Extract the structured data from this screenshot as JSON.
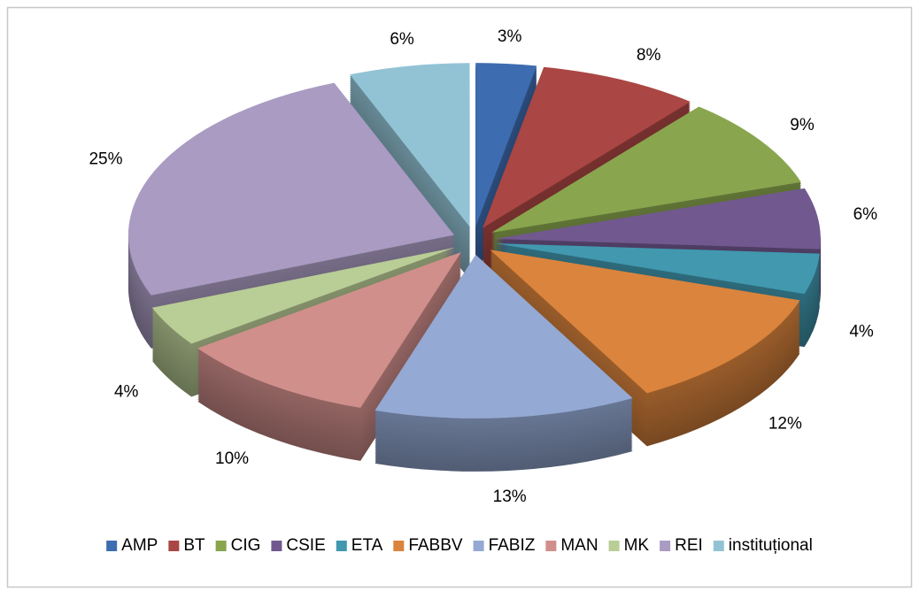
{
  "chart_data": {
    "type": "pie",
    "categories": [
      "AMP",
      "BT",
      "CIG",
      "CSIE",
      "ETA",
      "FABBV",
      "FABIZ",
      "MAN",
      "MK",
      "REI",
      "instituțional"
    ],
    "values": [
      3,
      8,
      9,
      6,
      4,
      12,
      13,
      10,
      4,
      25,
      6
    ],
    "value_labels": [
      "3%",
      "8%",
      "9%",
      "6%",
      "4%",
      "12%",
      "13%",
      "10%",
      "4%",
      "25%",
      "6%"
    ],
    "colors": [
      "#3e6cb0",
      "#aa4643",
      "#89a54e",
      "#71588f",
      "#4198af",
      "#db843d",
      "#94a9d3",
      "#d18f8c",
      "#b9cd96",
      "#a99bc1",
      "#92c3d5"
    ],
    "legend": "bottom"
  }
}
